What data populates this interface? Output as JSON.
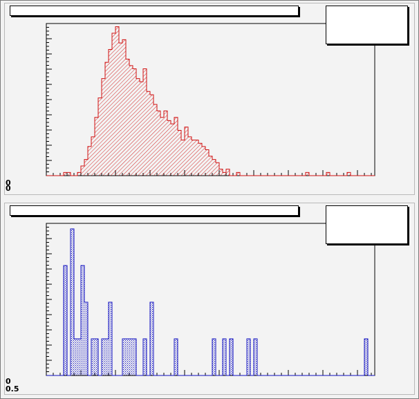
{
  "chart_data": [
    {
      "type": "bar",
      "style": "histogram",
      "title": "",
      "xlabel": "",
      "ylabel": "",
      "xlim": [
        0,
        95
      ],
      "ylim": [
        0,
        47
      ],
      "line_color": "#d01010",
      "fill_color": "#d01010",
      "fill_pattern": "hatched",
      "y_tick_labels_visible": [
        "0",
        "0"
      ],
      "bins_x": [
        0,
        1,
        2,
        3,
        4,
        5,
        6,
        7,
        8,
        9,
        10,
        11,
        12,
        13,
        14,
        15,
        16,
        17,
        18,
        19,
        20,
        21,
        22,
        23,
        24,
        25,
        26,
        27,
        28,
        29,
        30,
        31,
        32,
        33,
        34,
        35,
        36,
        37,
        38,
        39,
        40,
        41,
        42,
        43,
        44,
        45,
        46,
        47,
        48,
        49,
        50,
        51,
        52,
        53,
        54,
        55,
        56,
        57,
        58,
        59,
        60,
        61,
        62,
        63,
        64,
        65,
        66,
        67,
        68,
        69,
        70,
        71,
        72,
        73,
        74,
        75,
        76,
        77,
        78,
        79,
        80,
        81,
        82,
        83,
        84,
        85,
        86,
        87,
        88,
        89,
        90,
        91,
        92,
        93,
        94
      ],
      "values": [
        0,
        0,
        0,
        0,
        0,
        1,
        1,
        0,
        0,
        1,
        3,
        5,
        9,
        12,
        18,
        24,
        30,
        35,
        39,
        44,
        46,
        41,
        42,
        36,
        34,
        33,
        30,
        29,
        33,
        26,
        25,
        22,
        20,
        18,
        20,
        17,
        16,
        18,
        14,
        11,
        15,
        12,
        11,
        11,
        10,
        9,
        8,
        6,
        5,
        4,
        2,
        1,
        2,
        0,
        0,
        1,
        0,
        0,
        0,
        0,
        0,
        0,
        0,
        0,
        0,
        0,
        0,
        0,
        0,
        0,
        0,
        0,
        0,
        0,
        0,
        1,
        0,
        0,
        0,
        0,
        0,
        1,
        0,
        0,
        0,
        0,
        0,
        1,
        0,
        0,
        0,
        0,
        0,
        0,
        0
      ]
    },
    {
      "type": "bar",
      "style": "histogram",
      "title": "",
      "xlabel": "",
      "ylabel": "",
      "xlim": [
        0,
        95
      ],
      "ylim": [
        0,
        8.3
      ],
      "line_color": "#1010c0",
      "fill_color": "#1010c0",
      "fill_pattern": "dotted",
      "y_tick_labels_visible": [
        "0",
        "0.5"
      ],
      "bins_x": [
        0,
        1,
        2,
        3,
        4,
        5,
        6,
        7,
        8,
        9,
        10,
        11,
        12,
        13,
        14,
        15,
        16,
        17,
        18,
        19,
        20,
        21,
        22,
        23,
        24,
        25,
        26,
        27,
        28,
        29,
        30,
        31,
        32,
        33,
        34,
        35,
        36,
        37,
        38,
        39,
        40,
        41,
        42,
        43,
        44,
        45,
        46,
        47,
        48,
        49,
        50,
        51,
        52,
        53,
        54,
        55,
        56,
        57,
        58,
        59,
        60,
        61,
        62,
        63,
        64,
        65,
        66,
        67,
        68,
        69,
        70,
        71,
        72,
        73,
        74,
        75,
        76,
        77,
        78,
        79,
        80,
        81,
        82,
        83,
        84,
        85,
        86,
        87,
        88,
        89,
        90,
        91,
        92,
        93,
        94
      ],
      "values": [
        0,
        0,
        0,
        0,
        0,
        6,
        0,
        8,
        2,
        2,
        6,
        4,
        0,
        2,
        2,
        0,
        2,
        2,
        4,
        0,
        0,
        0,
        2,
        2,
        2,
        2,
        0,
        0,
        2,
        0,
        4,
        0,
        0,
        0,
        0,
        0,
        0,
        2,
        0,
        0,
        0,
        0,
        0,
        0,
        0,
        0,
        0,
        0,
        2,
        0,
        0,
        2,
        0,
        2,
        0,
        0,
        0,
        0,
        2,
        0,
        2,
        0,
        0,
        0,
        0,
        0,
        0,
        0,
        0,
        0,
        0,
        0,
        0,
        0,
        0,
        0,
        0,
        0,
        0,
        0,
        0,
        0,
        0,
        0,
        0,
        0,
        0,
        0,
        0,
        0,
        0,
        0,
        2,
        0,
        0
      ]
    }
  ]
}
